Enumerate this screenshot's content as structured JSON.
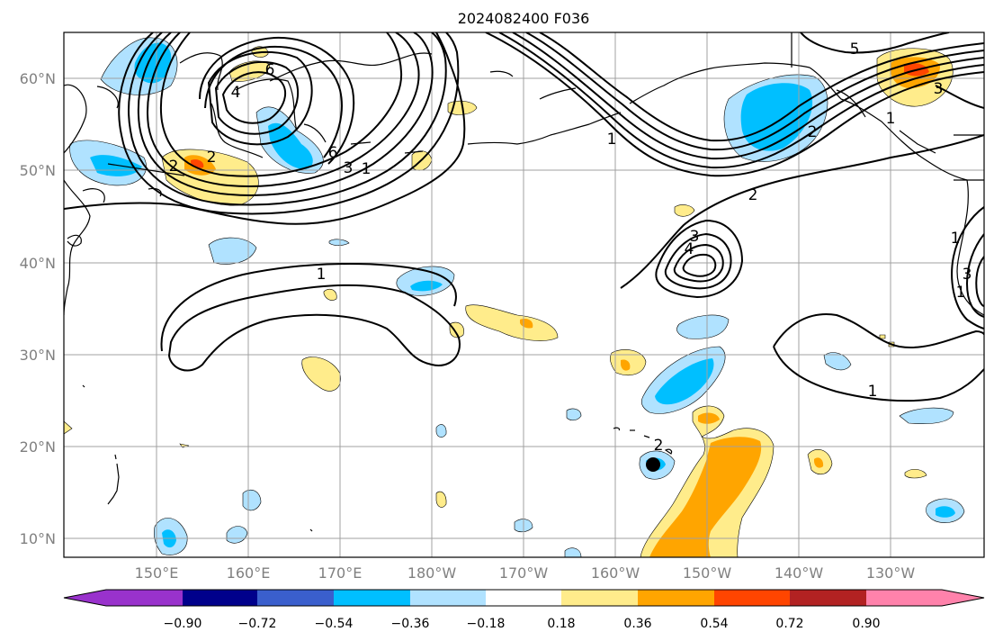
{
  "title": "2024082400 F036",
  "lat_labels": [
    "60°N",
    "50°N",
    "40°N",
    "30°N",
    "20°N",
    "10°N"
  ],
  "lon_labels": [
    "150°E",
    "160°E",
    "170°E",
    "180°W",
    "170°W",
    "160°W",
    "150°W",
    "140°W",
    "130°W"
  ],
  "colorbar": {
    "colors": [
      "#9932cc",
      "#00008b",
      "#3a5fcd",
      "#00bfff",
      "#b0e2ff",
      "#ffffff",
      "#ffec8b",
      "#ffa500",
      "#ff4500",
      "#b22222",
      "#ff82ab"
    ],
    "tick_labels": [
      "−0.90",
      "−0.72",
      "−0.54",
      "−0.36",
      "−0.18",
      "0.18",
      "0.36",
      "0.54",
      "0.72",
      "0.90"
    ]
  },
  "contour_labels": [
    "6",
    "4",
    "2",
    "6",
    "3",
    "1",
    "1",
    "2",
    "5",
    "3",
    "2",
    "1",
    "1",
    "2",
    "3",
    "4",
    "1",
    "1",
    "3",
    "1",
    "2"
  ],
  "colors": {
    "light_blue": "#b0e2ff",
    "deep_sky_blue": "#00bfff",
    "light_yellow": "#ffec8b",
    "orange": "#ffa500",
    "orange_red": "#ff4500"
  },
  "marker": "storm-center-dot"
}
